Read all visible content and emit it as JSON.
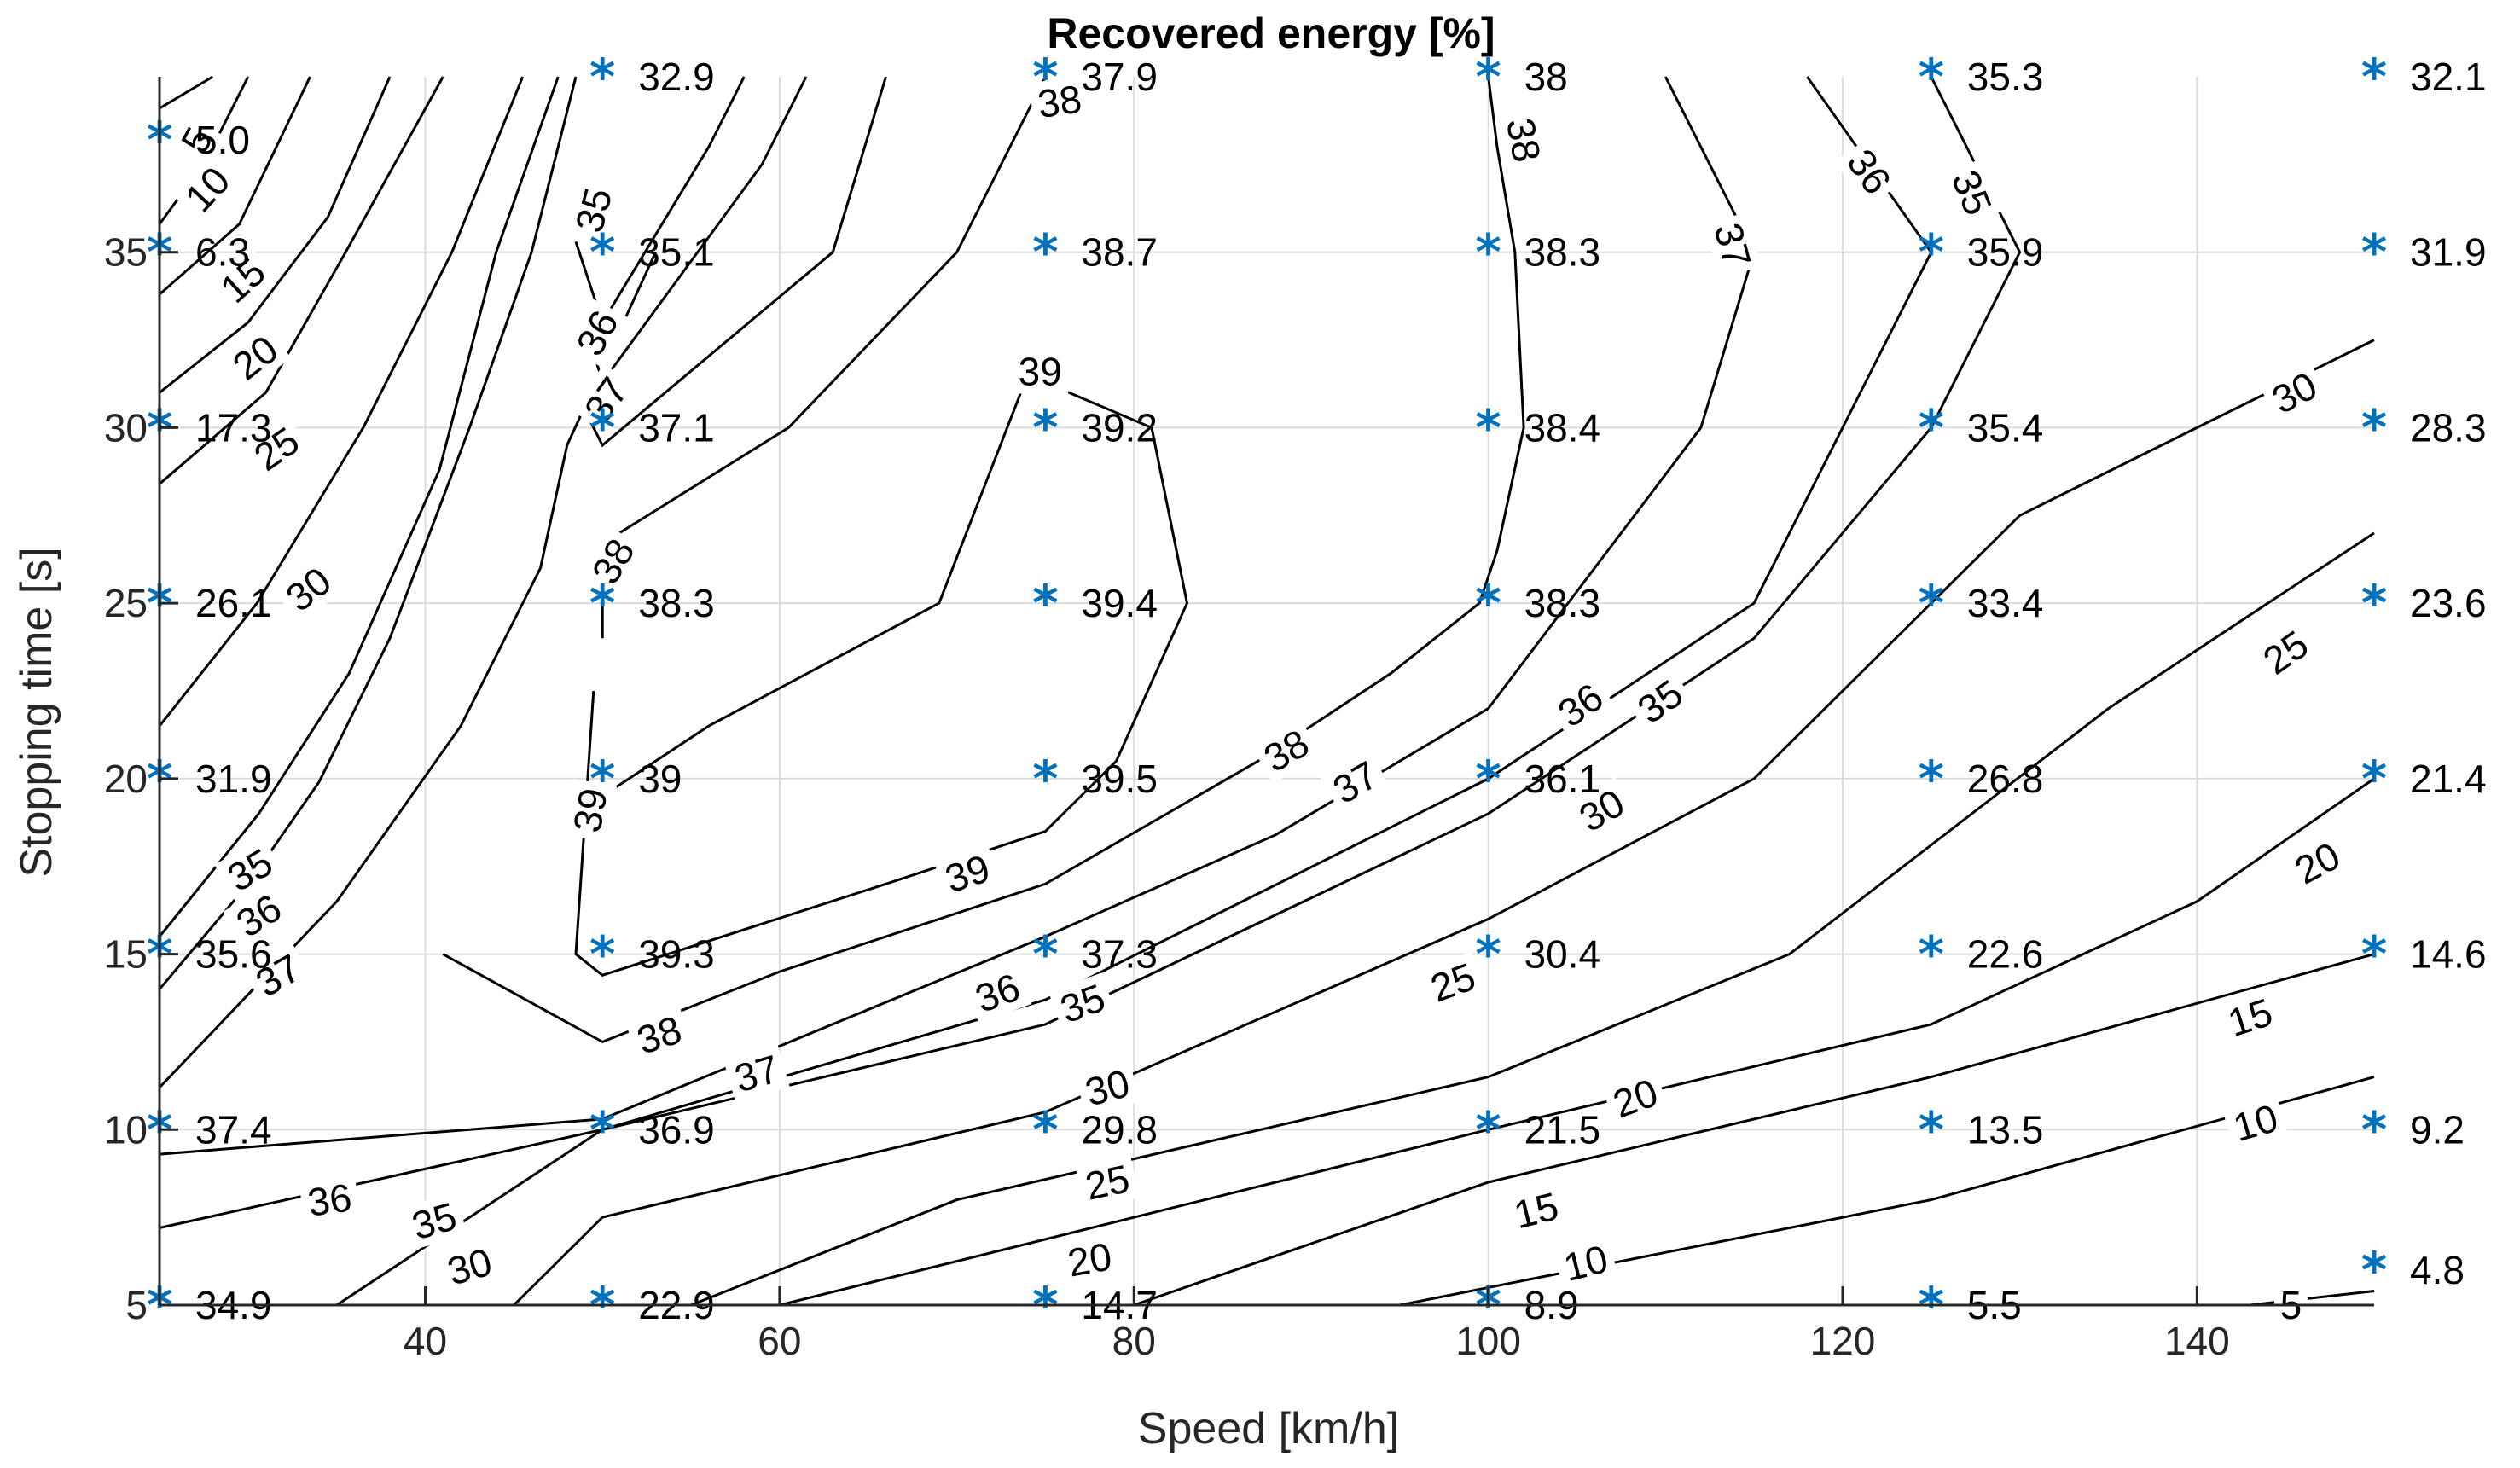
{
  "chart_data": {
    "type": "contour",
    "title": "Recovered energy [%]",
    "xlabel": "Speed [km/h]",
    "ylabel": "Stopping time [s]",
    "xlim": [
      25,
      150
    ],
    "ylim": [
      5,
      40
    ],
    "xticks": [
      40,
      60,
      80,
      100,
      120,
      140
    ],
    "yticks": [
      5,
      10,
      15,
      20,
      25,
      30,
      35
    ],
    "grid": true,
    "marker": {
      "symbol": "*",
      "color": "#0072BD"
    },
    "points": [
      {
        "x": 25,
        "y": 5,
        "label": "34.9"
      },
      {
        "x": 25,
        "y": 10,
        "label": "37.4"
      },
      {
        "x": 25,
        "y": 15,
        "label": "35.6"
      },
      {
        "x": 25,
        "y": 20,
        "label": "31.9"
      },
      {
        "x": 25,
        "y": 25,
        "label": "26.1"
      },
      {
        "x": 25,
        "y": 30,
        "label": "17.3"
      },
      {
        "x": 25,
        "y": 35,
        "label": "6.3"
      },
      {
        "x": 25,
        "y": 38.2,
        "label": "5.0"
      },
      {
        "x": 50,
        "y": 5,
        "label": "22.9"
      },
      {
        "x": 50,
        "y": 10,
        "label": "36.9"
      },
      {
        "x": 50,
        "y": 15,
        "label": "39.3"
      },
      {
        "x": 50,
        "y": 20,
        "label": "39"
      },
      {
        "x": 50,
        "y": 25,
        "label": "38.3"
      },
      {
        "x": 50,
        "y": 30,
        "label": "37.1"
      },
      {
        "x": 50,
        "y": 35,
        "label": "35.1"
      },
      {
        "x": 50,
        "y": 40,
        "label": "32.9"
      },
      {
        "x": 75,
        "y": 5,
        "label": "14.7"
      },
      {
        "x": 75,
        "y": 10,
        "label": "29.8"
      },
      {
        "x": 75,
        "y": 15,
        "label": "37.3"
      },
      {
        "x": 75,
        "y": 20,
        "label": "39.5"
      },
      {
        "x": 75,
        "y": 25,
        "label": "39.4"
      },
      {
        "x": 75,
        "y": 30,
        "label": "39.2"
      },
      {
        "x": 75,
        "y": 35,
        "label": "38.7"
      },
      {
        "x": 75,
        "y": 40,
        "label": "37.9"
      },
      {
        "x": 100,
        "y": 5,
        "label": "8.9"
      },
      {
        "x": 100,
        "y": 10,
        "label": "21.5"
      },
      {
        "x": 100,
        "y": 15,
        "label": "30.4"
      },
      {
        "x": 100,
        "y": 20,
        "label": "36.1"
      },
      {
        "x": 100,
        "y": 25,
        "label": "38.3"
      },
      {
        "x": 100,
        "y": 30,
        "label": "38.4"
      },
      {
        "x": 100,
        "y": 35,
        "label": "38.3"
      },
      {
        "x": 100,
        "y": 40,
        "label": "38"
      },
      {
        "x": 125,
        "y": 5,
        "label": "5.5"
      },
      {
        "x": 125,
        "y": 10,
        "label": "13.5"
      },
      {
        "x": 125,
        "y": 15,
        "label": "22.6"
      },
      {
        "x": 125,
        "y": 20,
        "label": "26.8"
      },
      {
        "x": 125,
        "y": 25,
        "label": "33.4"
      },
      {
        "x": 125,
        "y": 30,
        "label": "35.4"
      },
      {
        "x": 125,
        "y": 35,
        "label": "35.9"
      },
      {
        "x": 125,
        "y": 40,
        "label": "35.3"
      },
      {
        "x": 150,
        "y": 6,
        "label": "4.8"
      },
      {
        "x": 150,
        "y": 10,
        "label": "9.2"
      },
      {
        "x": 150,
        "y": 15,
        "label": "14.6"
      },
      {
        "x": 150,
        "y": 20,
        "label": "21.4"
      },
      {
        "x": 150,
        "y": 25,
        "label": "23.6"
      },
      {
        "x": 150,
        "y": 30,
        "label": "28.3"
      },
      {
        "x": 150,
        "y": 35,
        "label": "31.9"
      },
      {
        "x": 150,
        "y": 40,
        "label": "32.1"
      }
    ],
    "contours": [
      {
        "level": "5",
        "path": [
          [
            25,
            39.1
          ],
          [
            28,
            40
          ]
        ],
        "labels": [
          {
            "x": 27.1,
            "y": 38.2,
            "angle": -62
          }
        ]
      },
      {
        "level": "10",
        "path": [
          [
            25,
            35.8
          ],
          [
            27.6,
            37.6
          ],
          [
            30,
            40
          ]
        ],
        "labels": [
          {
            "x": 27.7,
            "y": 36.8,
            "angle": -47
          }
        ]
      },
      {
        "level": "15",
        "path": [
          [
            25,
            33.8
          ],
          [
            29.5,
            35.8
          ],
          [
            33.5,
            40
          ]
        ],
        "labels": [
          {
            "x": 29.7,
            "y": 34.2,
            "angle": -42
          }
        ]
      },
      {
        "level": "20",
        "path": [
          [
            25,
            31
          ],
          [
            30,
            33
          ],
          [
            34.5,
            36
          ],
          [
            38,
            40
          ]
        ],
        "labels": [
          {
            "x": 30.4,
            "y": 32,
            "angle": -38
          }
        ]
      },
      {
        "level": "25",
        "path": [
          [
            25,
            28.4
          ],
          [
            31,
            31
          ],
          [
            35.5,
            35
          ],
          [
            41,
            40
          ]
        ],
        "labels": [
          {
            "x": 31.6,
            "y": 29.4,
            "angle": -35
          }
        ]
      },
      {
        "level": "30",
        "path": [
          [
            25,
            21.5
          ],
          [
            30.5,
            25
          ],
          [
            36.5,
            30
          ],
          [
            41.5,
            35
          ],
          [
            45.5,
            40
          ]
        ],
        "labels": [
          {
            "x": 33.4,
            "y": 25.4,
            "angle": -38
          }
        ]
      },
      {
        "level": "35",
        "path": [
          [
            25,
            15.5
          ],
          [
            30.6,
            19
          ],
          [
            35.7,
            23
          ],
          [
            40.8,
            28.8
          ],
          [
            44,
            35
          ],
          [
            47.5,
            40
          ]
        ],
        "labels": [
          {
            "x": 30.1,
            "y": 17.4,
            "angle": -30
          }
        ]
      },
      {
        "level": "36",
        "path": [
          [
            25,
            14
          ],
          [
            30,
            17
          ],
          [
            34,
            19.9
          ],
          [
            38,
            24
          ],
          [
            42.5,
            30
          ],
          [
            46,
            35
          ],
          [
            48.5,
            40
          ]
        ],
        "labels": [
          {
            "x": 30.6,
            "y": 16.1,
            "angle": -32
          }
        ]
      },
      {
        "level": "37",
        "path": [
          [
            25,
            11.2
          ],
          [
            35,
            16.5
          ],
          [
            42,
            21.5
          ],
          [
            46.5,
            26
          ],
          [
            48,
            29.5
          ],
          [
            53,
            35
          ]
        ],
        "labels": [
          {
            "x": 31.7,
            "y": 14.4,
            "angle": -30
          }
        ]
      },
      {
        "level": "35",
        "path": [
          [
            48.5,
            35.3
          ],
          [
            50,
            33
          ],
          [
            56,
            38
          ],
          [
            58,
            40
          ]
        ],
        "labels": [
          {
            "x": 49.5,
            "y": 36.2,
            "angle": -75
          }
        ]
      },
      {
        "level": "36",
        "path": [
          [
            49,
            33
          ],
          [
            50,
            31.3
          ],
          [
            59,
            37.5
          ],
          [
            61.5,
            40
          ]
        ],
        "labels": [
          {
            "x": 49.7,
            "y": 32.7,
            "angle": -62
          }
        ]
      },
      {
        "level": "37",
        "path": [
          [
            49,
            30.5
          ],
          [
            50,
            29.5
          ],
          [
            63,
            35
          ],
          [
            66,
            40
          ]
        ],
        "labels": [
          {
            "x": 50.2,
            "y": 30.8,
            "angle": -55
          }
        ]
      },
      {
        "level": "38",
        "path": [
          [
            50,
            24
          ],
          [
            50,
            26.7
          ],
          [
            60.5,
            30
          ],
          [
            70,
            35
          ],
          [
            75,
            40
          ]
        ],
        "labels": [
          {
            "x": 50.6,
            "y": 26.2,
            "angle": -60
          }
        ]
      },
      {
        "level": "39",
        "path": [
          [
            49.5,
            22.5
          ],
          [
            48.5,
            15
          ],
          [
            50,
            14.4
          ],
          [
            66,
            17
          ],
          [
            75,
            18.5
          ],
          [
            79,
            20.5
          ],
          [
            83,
            25
          ],
          [
            81,
            30
          ],
          [
            74,
            31.5
          ],
          [
            69,
            25
          ],
          [
            56,
            21.5
          ],
          [
            50,
            19.5
          ]
        ],
        "labels": [
          {
            "x": 74.7,
            "y": 31.6,
            "angle": 0
          },
          {
            "x": 49.3,
            "y": 19.1,
            "angle": -80
          }
        ]
      },
      {
        "level": "38",
        "path": [
          [
            41,
            15
          ],
          [
            50,
            12.5
          ],
          [
            60,
            14.5
          ],
          [
            75,
            17
          ],
          [
            87,
            20.5
          ],
          [
            94.5,
            23
          ],
          [
            99.5,
            25
          ],
          [
            100.5,
            26.5
          ],
          [
            102,
            30
          ],
          [
            101.5,
            35
          ],
          [
            100.5,
            38
          ],
          [
            100,
            40
          ]
        ],
        "labels": [
          {
            "x": 102,
            "y": 38.2,
            "angle": 80
          },
          {
            "x": 75.8,
            "y": 39.3,
            "angle": -8
          }
        ]
      },
      {
        "level": "37",
        "path": [
          [
            25,
            9.3
          ],
          [
            50,
            10.3
          ],
          [
            75,
            15.5
          ],
          [
            88,
            18.4
          ],
          [
            100,
            22
          ],
          [
            112,
            30
          ],
          [
            115,
            35
          ],
          [
            110,
            40
          ]
        ],
        "labels": [
          {
            "x": 113.8,
            "y": 35.2,
            "angle": 75
          }
        ]
      },
      {
        "level": "36",
        "path": [
          [
            25,
            7.2
          ],
          [
            50,
            10
          ],
          [
            75,
            13.7
          ],
          [
            100,
            20
          ],
          [
            115,
            25
          ],
          [
            125,
            35
          ],
          [
            118,
            40
          ]
        ],
        "labels": [
          {
            "x": 121.5,
            "y": 37.3,
            "angle": 55
          }
        ]
      },
      {
        "level": "35",
        "path": [
          [
            35,
            5
          ],
          [
            50,
            10
          ],
          [
            75,
            13
          ],
          [
            100,
            19
          ],
          [
            115,
            24
          ],
          [
            125,
            30
          ],
          [
            130,
            35
          ],
          [
            128,
            37
          ],
          [
            125,
            40
          ]
        ],
        "labels": [
          {
            "x": 127.3,
            "y": 36.7,
            "angle": 68
          }
        ]
      },
      {
        "level": "30",
        "path": [
          [
            45,
            5
          ],
          [
            50,
            7.5
          ],
          [
            75,
            10.5
          ],
          [
            100,
            16
          ],
          [
            115,
            20
          ],
          [
            130,
            27.5
          ],
          [
            140,
            30
          ],
          [
            150,
            32.5
          ]
        ],
        "labels": [
          {
            "x": 145.5,
            "y": 31,
            "angle": -27
          }
        ]
      },
      {
        "level": "25",
        "path": [
          [
            55,
            5
          ],
          [
            70,
            8
          ],
          [
            100,
            11.5
          ],
          [
            117,
            15
          ],
          [
            135,
            22
          ],
          [
            150,
            27
          ]
        ],
        "labels": [
          {
            "x": 145,
            "y": 23.6,
            "angle": -35
          }
        ]
      },
      {
        "level": "20",
        "path": [
          [
            60,
            5
          ],
          [
            100,
            10
          ],
          [
            125,
            13
          ],
          [
            140,
            16.5
          ],
          [
            150,
            20
          ]
        ],
        "labels": [
          {
            "x": 146.8,
            "y": 17.6,
            "angle": -28
          }
        ]
      },
      {
        "level": "15",
        "path": [
          [
            80,
            5
          ],
          [
            100,
            8.5
          ],
          [
            125,
            11.5
          ],
          [
            150,
            15
          ]
        ],
        "labels": [
          {
            "x": 143,
            "y": 13.2,
            "angle": -18
          }
        ]
      },
      {
        "level": "10",
        "path": [
          [
            95,
            5
          ],
          [
            110,
            6.5
          ],
          [
            125,
            8
          ],
          [
            150,
            11.5
          ]
        ],
        "labels": [
          {
            "x": 143.3,
            "y": 10.2,
            "angle": -16
          }
        ]
      },
      {
        "level": "5",
        "path": [
          [
            143,
            5
          ],
          [
            150,
            5.4
          ]
        ],
        "labels": [
          {
            "x": 145.3,
            "y": 5,
            "angle": 0
          }
        ]
      }
    ],
    "contour_labels_extra": [
      {
        "level": "38",
        "x": 53.2,
        "y": 12.7,
        "angle": -18
      },
      {
        "level": "37",
        "x": 58.7,
        "y": 11.6,
        "angle": -16
      },
      {
        "level": "39",
        "x": 70.6,
        "y": 17.3,
        "angle": -18
      },
      {
        "level": "36",
        "x": 72.3,
        "y": 13.9,
        "angle": -20
      },
      {
        "level": "35",
        "x": 77.1,
        "y": 13.6,
        "angle": -20
      },
      {
        "level": "38",
        "x": 88.6,
        "y": 20.8,
        "angle": -30
      },
      {
        "level": "37",
        "x": 92.5,
        "y": 19.9,
        "angle": -30
      },
      {
        "level": "36",
        "x": 105.2,
        "y": 22.1,
        "angle": -35
      },
      {
        "level": "35",
        "x": 109.7,
        "y": 22.2,
        "angle": -35
      },
      {
        "level": "30",
        "x": 106.4,
        "y": 19.1,
        "angle": -30
      },
      {
        "level": "30",
        "x": 78.5,
        "y": 11.2,
        "angle": -15
      },
      {
        "level": "25",
        "x": 98,
        "y": 14.2,
        "angle": -20
      },
      {
        "level": "20",
        "x": 108.3,
        "y": 10.9,
        "angle": -20
      },
      {
        "level": "25",
        "x": 78.5,
        "y": 8.5,
        "angle": -12
      },
      {
        "level": "15",
        "x": 102.7,
        "y": 7.7,
        "angle": -14
      },
      {
        "level": "20",
        "x": 77.5,
        "y": 6.3,
        "angle": -10
      },
      {
        "level": "10",
        "x": 105.5,
        "y": 6.2,
        "angle": -14
      },
      {
        "level": "36",
        "x": 34.6,
        "y": 8,
        "angle": -8
      },
      {
        "level": "35",
        "x": 40.5,
        "y": 7.4,
        "angle": -16
      },
      {
        "level": "30",
        "x": 42.5,
        "y": 6.1,
        "angle": -16
      }
    ]
  }
}
